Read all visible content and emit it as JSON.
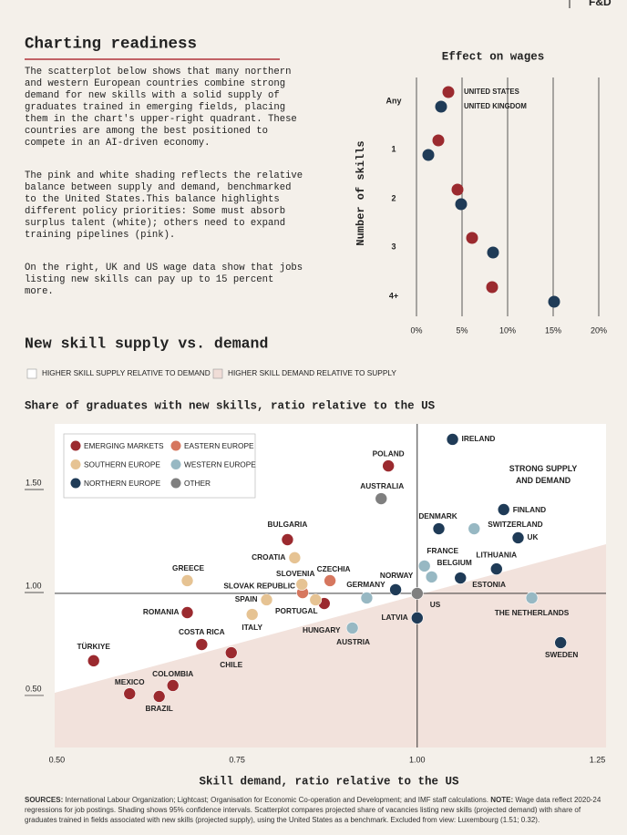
{
  "page": {
    "logo": "F&D",
    "title": "Charting readiness",
    "paragraphs": [
      "The scatterplot below shows that many northern and western European countries combine strong demand for new skills with a solid supply of graduates trained in emerging fields, placing them in the chart's upper-right quadrant. These countries are among the best positioned to compete in an AI-driven economy.",
      "The pink and white shading reflects the relative balance between supply and demand, benchmarked to the United States.This balance highlights different policy priorities: Some must absorb surplus talent (white); others need to expand training pipelines (pink).",
      "On the right, UK and US wage data show that jobs listing new skills can pay up to 15 percent more."
    ],
    "sources_label": "SOURCES:",
    "sources_text": " International Labour Organization; Lightcast; Organisation for Economic Co-operation and Development; and IMF staff calculations. ",
    "note_label": "NOTE:",
    "note_text": " Wage data reflect 2020-24 regressions for job postings. Shading shows 95% confidence intervals. Scatterplot compares projected share of vacancies listing new skills (projected demand) with share of graduates trained in fields associated with new skills (projected supply), using the United States as a benchmark. Excluded from view: Luxembourg (1.51; 0.32)."
  },
  "chart_data": [
    {
      "type": "dot",
      "title": "Effect on wages",
      "y_label": "Number of skills",
      "categories": [
        "Any",
        "1",
        "2",
        "3",
        "4+"
      ],
      "series": [
        {
          "name": "UNITED STATES",
          "color": "#9b2a2f",
          "values": [
            3.5,
            2.4,
            4.5,
            6.1,
            8.3
          ]
        },
        {
          "name": "UNITED KINGDOM",
          "color": "#1f3b57",
          "values": [
            2.7,
            1.3,
            4.9,
            8.4,
            15.1
          ]
        }
      ],
      "xlim": [
        0,
        20
      ],
      "xticks": [
        {
          "value": 0,
          "label": "0%"
        },
        {
          "value": 5,
          "label": "5%"
        },
        {
          "value": 10,
          "label": "10%"
        },
        {
          "value": 15,
          "label": "15%"
        },
        {
          "value": 20,
          "label": "20%"
        }
      ],
      "grid": true
    },
    {
      "type": "scatter",
      "title": "New skill supply vs. demand",
      "shading_legend": [
        "HIGHER SKILL SUPPLY RELATIVE TO DEMAND",
        "HIGHER SKILL DEMAND RELATIVE TO SUPPLY"
      ],
      "subtitle": "Share of graduates with new skills, ratio relative to the US",
      "x_label": "Skill demand, ratio relative to the US",
      "annotation": "STRONG SUPPLY\nAND DEMAND",
      "xlim": [
        0.497,
        1.262
      ],
      "ylim": [
        0.252,
        1.823
      ],
      "xticks": [
        {
          "value": 0.5,
          "label": "0.50"
        },
        {
          "value": 0.75,
          "label": "0.75"
        },
        {
          "value": 1,
          "label": "1.00"
        },
        {
          "value": 1.25,
          "label": "1.25"
        }
      ],
      "yticks": [
        {
          "value": 0.5,
          "label": "0.50"
        },
        {
          "value": 1,
          "label": "1.00"
        },
        {
          "value": 1.5,
          "label": "1.50"
        }
      ],
      "ref_lines": {
        "x": 1,
        "y": 1
      },
      "series": [
        {
          "name": "EMERGING MARKETS",
          "color": "#9b2a2f",
          "labels": [
            "POLAND",
            "BULGARIA",
            "HUNGARY",
            "ROMANIA",
            "COSTA RICA",
            "CHILE",
            "TÜRKIYE",
            "COLOMBIA",
            "MEXICO",
            "BRAZIL"
          ],
          "x": [
            0.96,
            0.82,
            0.871,
            0.681,
            0.701,
            0.742,
            0.551,
            0.661,
            0.601,
            0.642
          ],
          "y": [
            1.619,
            1.261,
            0.951,
            0.907,
            0.752,
            0.712,
            0.673,
            0.553,
            0.513,
            0.5
          ]
        },
        {
          "name": "EASTERN EUROPE",
          "color": "#d6775f",
          "labels": [
            "CZECHIA",
            "SLOVAK REPUBLIC"
          ],
          "x": [
            0.879,
            0.841
          ],
          "y": [
            1.062,
            1.004
          ]
        },
        {
          "name": "SOUTHERN EUROPE",
          "color": "#e6c393",
          "labels": [
            "CROATIA",
            "GREECE",
            "SLOVENIA",
            "SPAIN",
            "PORTUGAL",
            "ITALY"
          ],
          "x": [
            0.83,
            0.681,
            0.84,
            0.791,
            0.859,
            0.771
          ],
          "y": [
            1.173,
            1.062,
            1.044,
            0.969,
            0.969,
            0.898
          ]
        },
        {
          "name": "WESTERN EUROPE",
          "color": "#97b8c3",
          "labels": [
            "SWITZERLAND",
            "FRANCE",
            "BELGIUM",
            "GERMANY",
            "THE NETHERLANDS",
            "AUSTRIA"
          ],
          "x": [
            1.079,
            1.01,
            1.02,
            0.93,
            1.159,
            0.91
          ],
          "y": [
            1.314,
            1.133,
            1.08,
            0.978,
            0.978,
            0.832
          ]
        },
        {
          "name": "NORTHERN EUROPE",
          "color": "#1f3b57",
          "labels": [
            "IRELAND",
            "FINLAND",
            "DENMARK",
            "UK",
            "LITHUANIA",
            "ESTONIA",
            "NORWAY",
            "LATVIA",
            "SWEDEN"
          ],
          "x": [
            1.049,
            1.12,
            1.03,
            1.14,
            1.11,
            1.06,
            0.97,
            1.0,
            1.199
          ],
          "y": [
            1.748,
            1.407,
            1.314,
            1.27,
            1.119,
            1.075,
            1.018,
            0.881,
            0.761
          ]
        },
        {
          "name": "OTHER",
          "color": "#7f7f7f",
          "labels": [
            "AUSTRALIA",
            "US"
          ],
          "x": [
            0.95,
            1.0
          ],
          "y": [
            1.46,
            1.0
          ]
        }
      ]
    }
  ]
}
